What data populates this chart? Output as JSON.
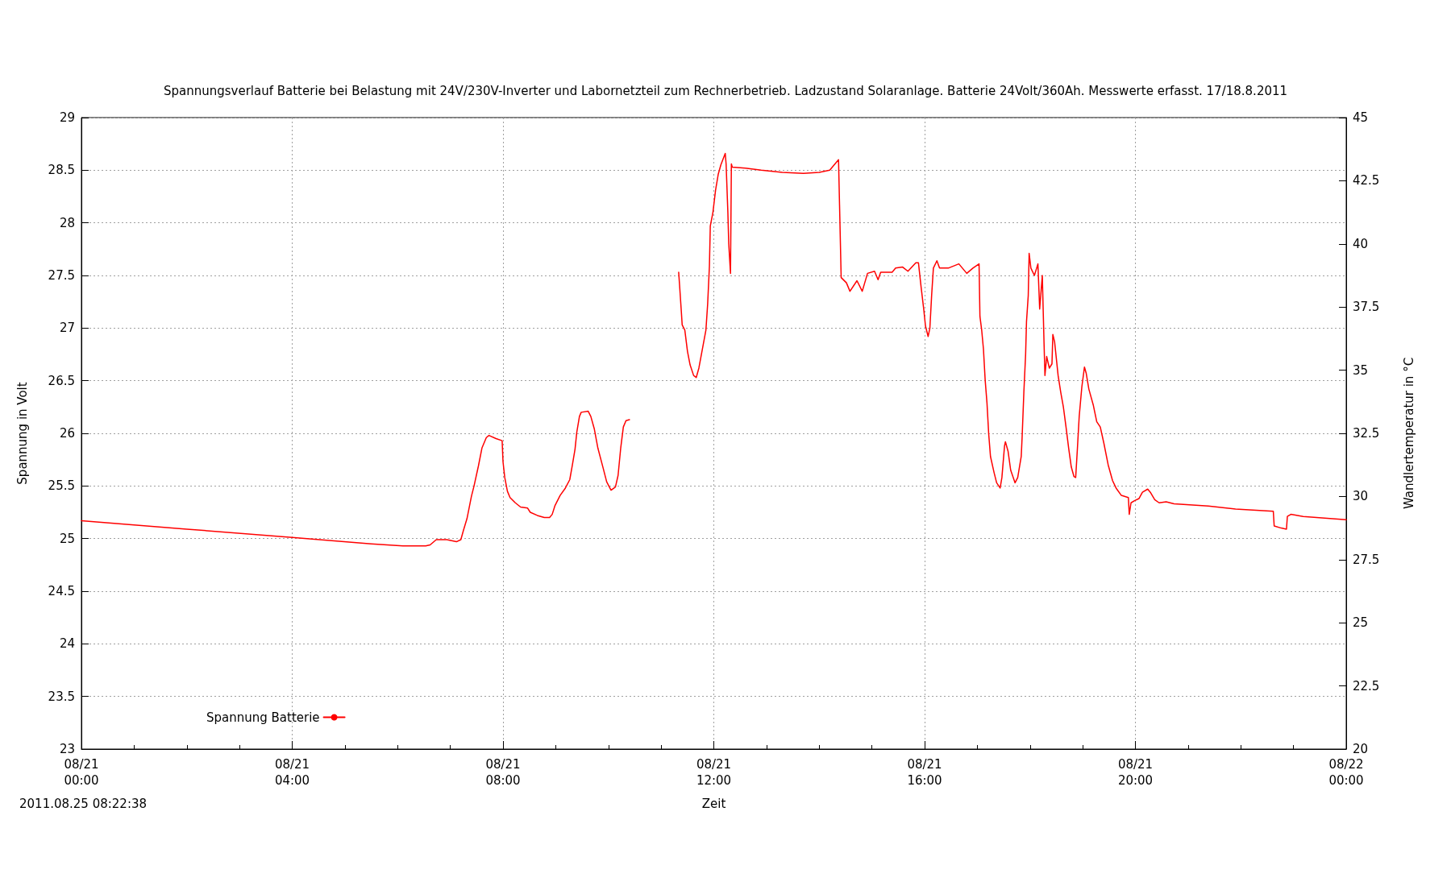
{
  "chart_data": {
    "type": "line",
    "title": "Spannungsverlauf Batterie bei Belastung mit 24V/230V-Inverter und Labornetzteil zum Rechnerbetrieb. Ladzustand Solaranlage. Batterie 24Volt/360Ah. Messwerte erfasst. 17/18.8.2011",
    "xlabel": "Zeit",
    "ylabel": "Spannung in Volt",
    "y2label": "Wandlertemperatur in °C",
    "annotations": [
      "2011.08.25 08:22:38"
    ],
    "x": [
      "--08-21T00:00",
      "--08-21T02:00",
      "--08-21T04:00",
      "--08-21T05:30",
      "--08-21T06:06",
      "--08-21T06:32",
      "--08-21T06:37",
      "--08-21T06:44",
      "--08-21T06:56",
      "--08-21T07:07",
      "--08-21T07:12",
      "--08-21T07:15",
      "--08-21T07:19",
      "--08-21T07:24",
      "--08-21T07:27",
      "--08-21T07:32",
      "--08-21T07:36",
      "--08-21T07:41",
      "--08-21T07:44",
      "--08-21T07:52",
      "--08-21T07:59",
      "--08-21T08:00",
      "--08-21T08:02",
      "--08-21T08:05",
      "--08-21T08:08",
      "--08-21T08:14",
      "--08-21T08:20",
      "--08-21T08:28",
      "--08-21T08:31",
      "--08-21T08:39",
      "--08-21T08:47",
      "--08-21T08:53",
      "--08-21T08:56",
      "--08-21T08:59",
      "--08-21T09:05",
      "--08-21T09:11",
      "--08-21T09:16",
      "--08-21T09:19",
      "--08-21T09:22",
      "--08-21T09:24",
      "--08-21T09:27",
      "--08-21T09:29",
      "--08-21T09:37",
      "--08-21T09:40",
      "--08-21T09:44",
      "--08-21T09:48",
      "--08-21T09:54",
      "--08-21T09:58",
      "--08-21T10:03",
      "--08-21T10:08",
      "--08-21T10:11",
      "--08-21T10:14",
      "--08-21T10:17",
      "--08-21T10:20",
      "--08-21T10:24",
      "--08-21T10:54",
      "--08-21T11:20",
      "--08-21T11:21",
      "--08-21T11:23",
      "--08-21T11:24",
      "--08-21T11:27",
      "--08-21T11:30",
      "--08-21T11:33",
      "--08-21T11:37",
      "--08-21T11:40",
      "--08-21T11:43",
      "--08-21T11:47",
      "--08-21T11:51",
      "--08-21T11:53",
      "--08-21T11:55",
      "--08-21T11:56",
      "--08-21T11:59",
      "--08-21T12:02",
      "--08-21T12:05",
      "--08-21T12:08",
      "--08-21T12:13",
      "--08-21T12:14",
      "--08-21T12:16",
      "--08-21T12:17",
      "--08-21T12:19",
      "--08-21T12:20",
      "--08-21T12:21",
      "--08-21T12:36",
      "--08-21T12:54",
      "--08-21T13:18",
      "--08-21T13:42",
      "--08-21T14:00",
      "--08-21T14:12",
      "--08-21T14:22",
      "--08-21T14:25",
      "--08-21T14:31",
      "--08-21T14:35",
      "--08-21T14:43",
      "--08-21T14:49",
      "--08-21T14:55",
      "--08-21T15:03",
      "--08-21T15:07",
      "--08-21T15:10",
      "--08-21T15:23",
      "--08-21T15:27",
      "--08-21T15:35",
      "--08-21T15:41",
      "--08-21T15:50",
      "--08-21T15:53",
      "--08-21T15:56",
      "--08-21T15:59",
      "--08-21T16:01",
      "--08-21T16:04",
      "--08-21T16:06",
      "--08-21T16:08",
      "--08-21T16:10",
      "--08-21T16:14",
      "--08-21T16:17",
      "--08-21T16:27",
      "--08-21T16:39",
      "--08-21T16:48",
      "--08-21T16:55",
      "--08-21T17:02",
      "--08-21T17:03",
      "--08-21T17:05",
      "--08-21T17:07",
      "--08-21T17:09",
      "--08-21T17:11",
      "--08-21T17:13",
      "--08-21T17:15",
      "--08-21T17:19",
      "--08-21T17:22",
      "--08-21T17:26",
      "--08-21T17:28",
      "--08-21T17:31",
      "--08-21T17:32",
      "--08-21T17:35",
      "--08-21T17:38",
      "--08-21T17:43",
      "--08-21T17:46",
      "--08-21T17:50",
      "--08-21T17:51",
      "--08-21T17:53",
      "--08-21T17:55",
      "--08-21T17:56",
      "--08-21T17:58",
      "--08-21T17:59",
      "--08-21T18:01",
      "--08-21T18:05",
      "--08-21T18:09",
      "--08-21T18:11",
      "--08-21T18:14",
      "--08-21T18:16",
      "--08-21T18:17",
      "--08-21T18:19",
      "--08-21T18:22",
      "--08-21T18:25",
      "--08-21T18:26",
      "--08-21T18:28",
      "--08-21T18:32",
      "--08-21T18:35",
      "--08-21T18:38",
      "--08-21T18:41",
      "--08-21T18:44",
      "--08-21T18:47",
      "--08-21T18:50",
      "--08-21T18:52",
      "--08-21T18:54",
      "--08-21T18:56",
      "--08-21T18:59",
      "--08-21T19:02",
      "--08-21T19:04",
      "--08-21T19:07",
      "--08-21T19:12",
      "--08-21T19:16",
      "--08-21T19:20",
      "--08-21T19:24",
      "--08-21T19:29",
      "--08-21T19:34",
      "--08-21T19:38",
      "--08-21T19:44",
      "--08-21T19:52",
      "--08-21T19:53",
      "--08-21T19:55",
      "--08-21T19:59",
      "--08-21T20:04",
      "--08-21T20:08",
      "--08-21T20:14",
      "--08-21T20:17",
      "--08-21T20:22",
      "--08-21T20:27",
      "--08-21T20:35",
      "--08-21T20:44",
      "--08-21T21:23",
      "--08-21T21:54",
      "--08-21T22:37",
      "--08-21T22:38",
      "--08-21T22:46",
      "--08-21T22:52",
      "--08-21T22:53",
      "--08-21T22:57",
      "--08-21T23:11",
      "--08-22T00:00"
    ],
    "series": [
      {
        "name": "Spannung Batterie",
        "color": "#ff0000",
        "values": [
          25.17,
          25.09,
          25.01,
          24.95,
          24.93,
          24.93,
          24.94,
          24.99,
          24.99,
          24.97,
          24.99,
          25.08,
          25.19,
          25.4,
          25.5,
          25.69,
          25.86,
          25.96,
          25.98,
          25.95,
          25.93,
          25.73,
          25.58,
          25.45,
          25.39,
          25.34,
          25.3,
          25.29,
          25.25,
          25.22,
          25.2,
          25.2,
          25.23,
          25.31,
          25.41,
          25.48,
          25.56,
          25.7,
          25.85,
          26.01,
          26.16,
          26.2,
          26.21,
          26.16,
          26.04,
          25.86,
          25.67,
          25.54,
          25.46,
          25.49,
          25.6,
          25.86,
          26.06,
          26.12,
          26.13,
          null,
          27.53,
          27.41,
          27.16,
          27.03,
          26.98,
          26.78,
          26.65,
          26.55,
          26.53,
          26.62,
          26.8,
          26.98,
          27.23,
          27.59,
          27.97,
          28.1,
          28.31,
          28.46,
          28.55,
          28.66,
          28.56,
          28.1,
          27.8,
          27.52,
          28.56,
          28.53,
          28.52,
          28.5,
          28.48,
          28.47,
          28.48,
          28.5,
          28.6,
          27.48,
          27.43,
          27.35,
          27.45,
          27.35,
          27.52,
          27.54,
          27.46,
          27.53,
          27.53,
          27.57,
          27.58,
          27.54,
          27.62,
          27.62,
          27.39,
          27.18,
          27.02,
          26.92,
          27.0,
          27.31,
          27.57,
          27.64,
          27.57,
          27.57,
          27.61,
          27.52,
          27.57,
          27.61,
          27.11,
          26.98,
          26.8,
          26.5,
          26.29,
          25.99,
          25.78,
          25.63,
          25.53,
          25.48,
          25.58,
          25.88,
          25.92,
          25.83,
          25.65,
          25.53,
          25.58,
          25.78,
          25.96,
          26.39,
          26.75,
          27.06,
          27.31,
          27.71,
          27.57,
          27.5,
          27.61,
          27.18,
          27.5,
          26.85,
          26.55,
          26.73,
          26.62,
          26.66,
          26.94,
          26.87,
          26.55,
          26.39,
          26.25,
          26.06,
          25.86,
          25.68,
          25.59,
          25.58,
          25.86,
          26.16,
          26.44,
          26.63,
          26.57,
          26.42,
          26.27,
          26.11,
          26.06,
          25.91,
          25.7,
          25.55,
          25.48,
          25.41,
          25.39,
          25.23,
          25.34,
          25.36,
          25.38,
          25.44,
          25.47,
          25.44,
          25.37,
          25.34,
          25.35,
          25.33,
          25.31,
          25.28,
          25.26,
          25.12,
          25.1,
          25.09,
          25.21,
          25.23,
          25.21,
          25.18
        ]
      }
    ],
    "xlim": [
      "--08-21T00:00",
      "--08-22T00:00"
    ],
    "xticks": [
      {
        "value": "--08-21T00:00",
        "label": "08/21\n00:00"
      },
      {
        "value": "--08-21T01:00",
        "label": null
      },
      {
        "value": "--08-21T02:00",
        "label": null
      },
      {
        "value": "--08-21T03:00",
        "label": null
      },
      {
        "value": "--08-21T04:00",
        "label": "08/21\n04:00"
      },
      {
        "value": "--08-21T05:00",
        "label": null
      },
      {
        "value": "--08-21T06:00",
        "label": null
      },
      {
        "value": "--08-21T07:00",
        "label": null
      },
      {
        "value": "--08-21T08:00",
        "label": "08/21\n08:00"
      },
      {
        "value": "--08-21T09:00",
        "label": null
      },
      {
        "value": "--08-21T10:00",
        "label": null
      },
      {
        "value": "--08-21T11:00",
        "label": null
      },
      {
        "value": "--08-21T12:00",
        "label": "08/21\n12:00"
      },
      {
        "value": "--08-21T13:00",
        "label": null
      },
      {
        "value": "--08-21T14:00",
        "label": null
      },
      {
        "value": "--08-21T15:00",
        "label": null
      },
      {
        "value": "--08-21T16:00",
        "label": "08/21\n16:00"
      },
      {
        "value": "--08-21T17:00",
        "label": null
      },
      {
        "value": "--08-21T18:00",
        "label": null
      },
      {
        "value": "--08-21T19:00",
        "label": null
      },
      {
        "value": "--08-21T20:00",
        "label": "08/21\n20:00"
      },
      {
        "value": "--08-21T21:00",
        "label": null
      },
      {
        "value": "--08-21T22:00",
        "label": null
      },
      {
        "value": "--08-21T23:00",
        "label": null
      },
      {
        "value": "--08-22T00:00",
        "label": "08/22\n00:00"
      }
    ],
    "ylim": [
      23,
      29
    ],
    "yticks": [
      23,
      23.5,
      24,
      24.5,
      25,
      25.5,
      26,
      26.5,
      27,
      27.5,
      28,
      28.5,
      29
    ],
    "y2lim": [
      20,
      45
    ],
    "y2ticks": [
      20,
      22.5,
      25,
      27.5,
      30,
      32.5,
      35,
      37.5,
      40,
      42.5,
      45
    ],
    "grid": true,
    "legend": "bottom left"
  }
}
